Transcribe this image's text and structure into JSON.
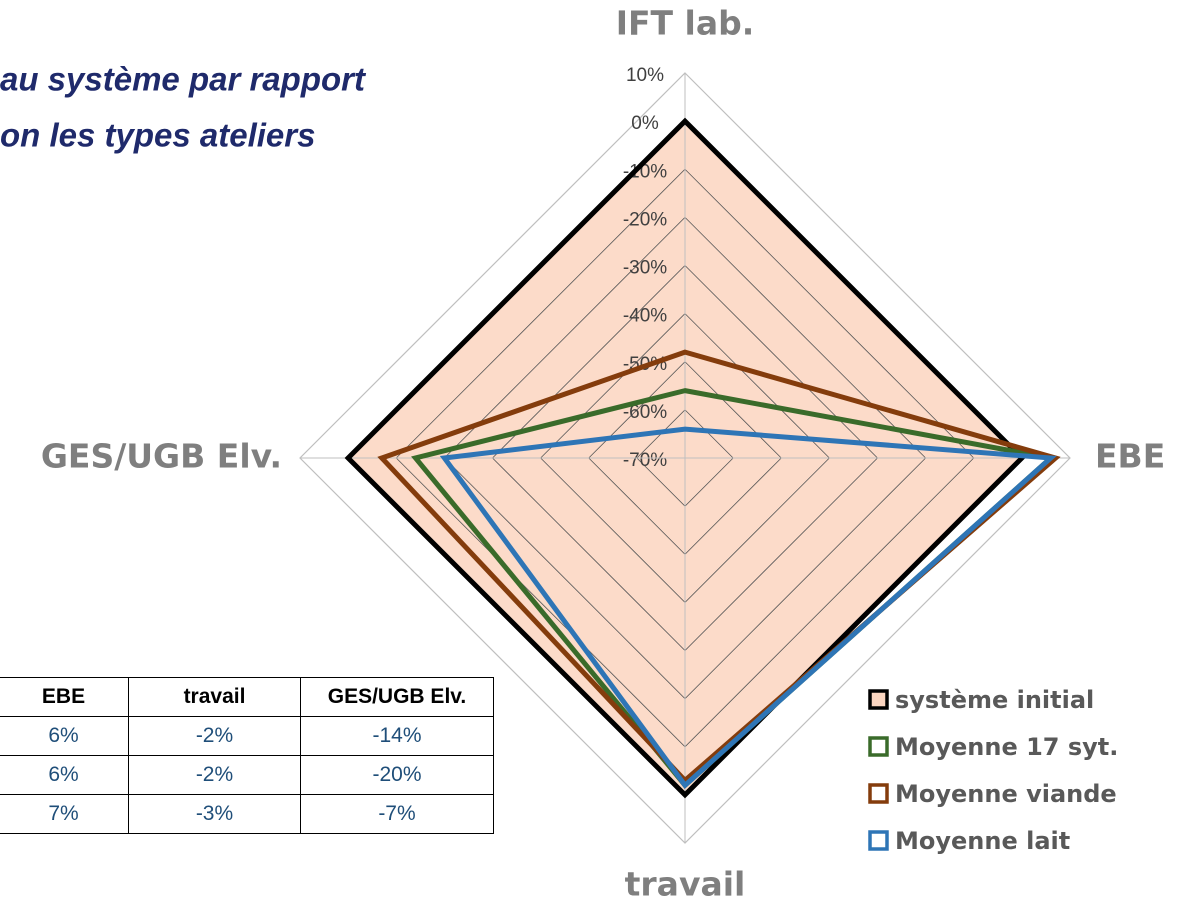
{
  "chart_data": {
    "type": "radar",
    "title_lines": [
      "au système par rapport",
      "on les types ateliers"
    ],
    "categories": [
      "IFT lab.",
      "EBE",
      "travail",
      "GES/UGB Elv."
    ],
    "rlim": [
      -70,
      10
    ],
    "rticks": [
      {
        "value": 10,
        "label": "10%"
      },
      {
        "value": 0,
        "label": "0%"
      },
      {
        "value": -10,
        "label": "-10%"
      },
      {
        "value": -20,
        "label": "-20%"
      },
      {
        "value": -30,
        "label": "-30%"
      },
      {
        "value": -40,
        "label": "-40%"
      },
      {
        "value": -50,
        "label": "-50%"
      },
      {
        "value": -60,
        "label": "-60%"
      },
      {
        "value": -70,
        "label": "-70%"
      }
    ],
    "series": [
      {
        "name": "système initial",
        "color": "#000000",
        "fill": "#fbd5c0",
        "values": [
          0,
          0,
          0,
          0
        ]
      },
      {
        "name": "Moyenne 17 syt.",
        "color": "#3a6b2a",
        "values": [
          -56,
          6,
          -2,
          -14
        ]
      },
      {
        "name": "Moyenne viande",
        "color": "#843c0c",
        "values": [
          -48,
          7,
          -3,
          -7
        ]
      },
      {
        "name": "Moyenne lait",
        "color": "#2e75b6",
        "values": [
          -64,
          6,
          -2,
          -20
        ]
      }
    ]
  },
  "table": {
    "header": [
      "EBE",
      "travail",
      "GES/UGB Elv."
    ],
    "rows": [
      [
        "6%",
        "-2%",
        "-14%"
      ],
      [
        "6%",
        "-2%",
        "-20%"
      ],
      [
        "7%",
        "-3%",
        "-7%"
      ]
    ]
  }
}
